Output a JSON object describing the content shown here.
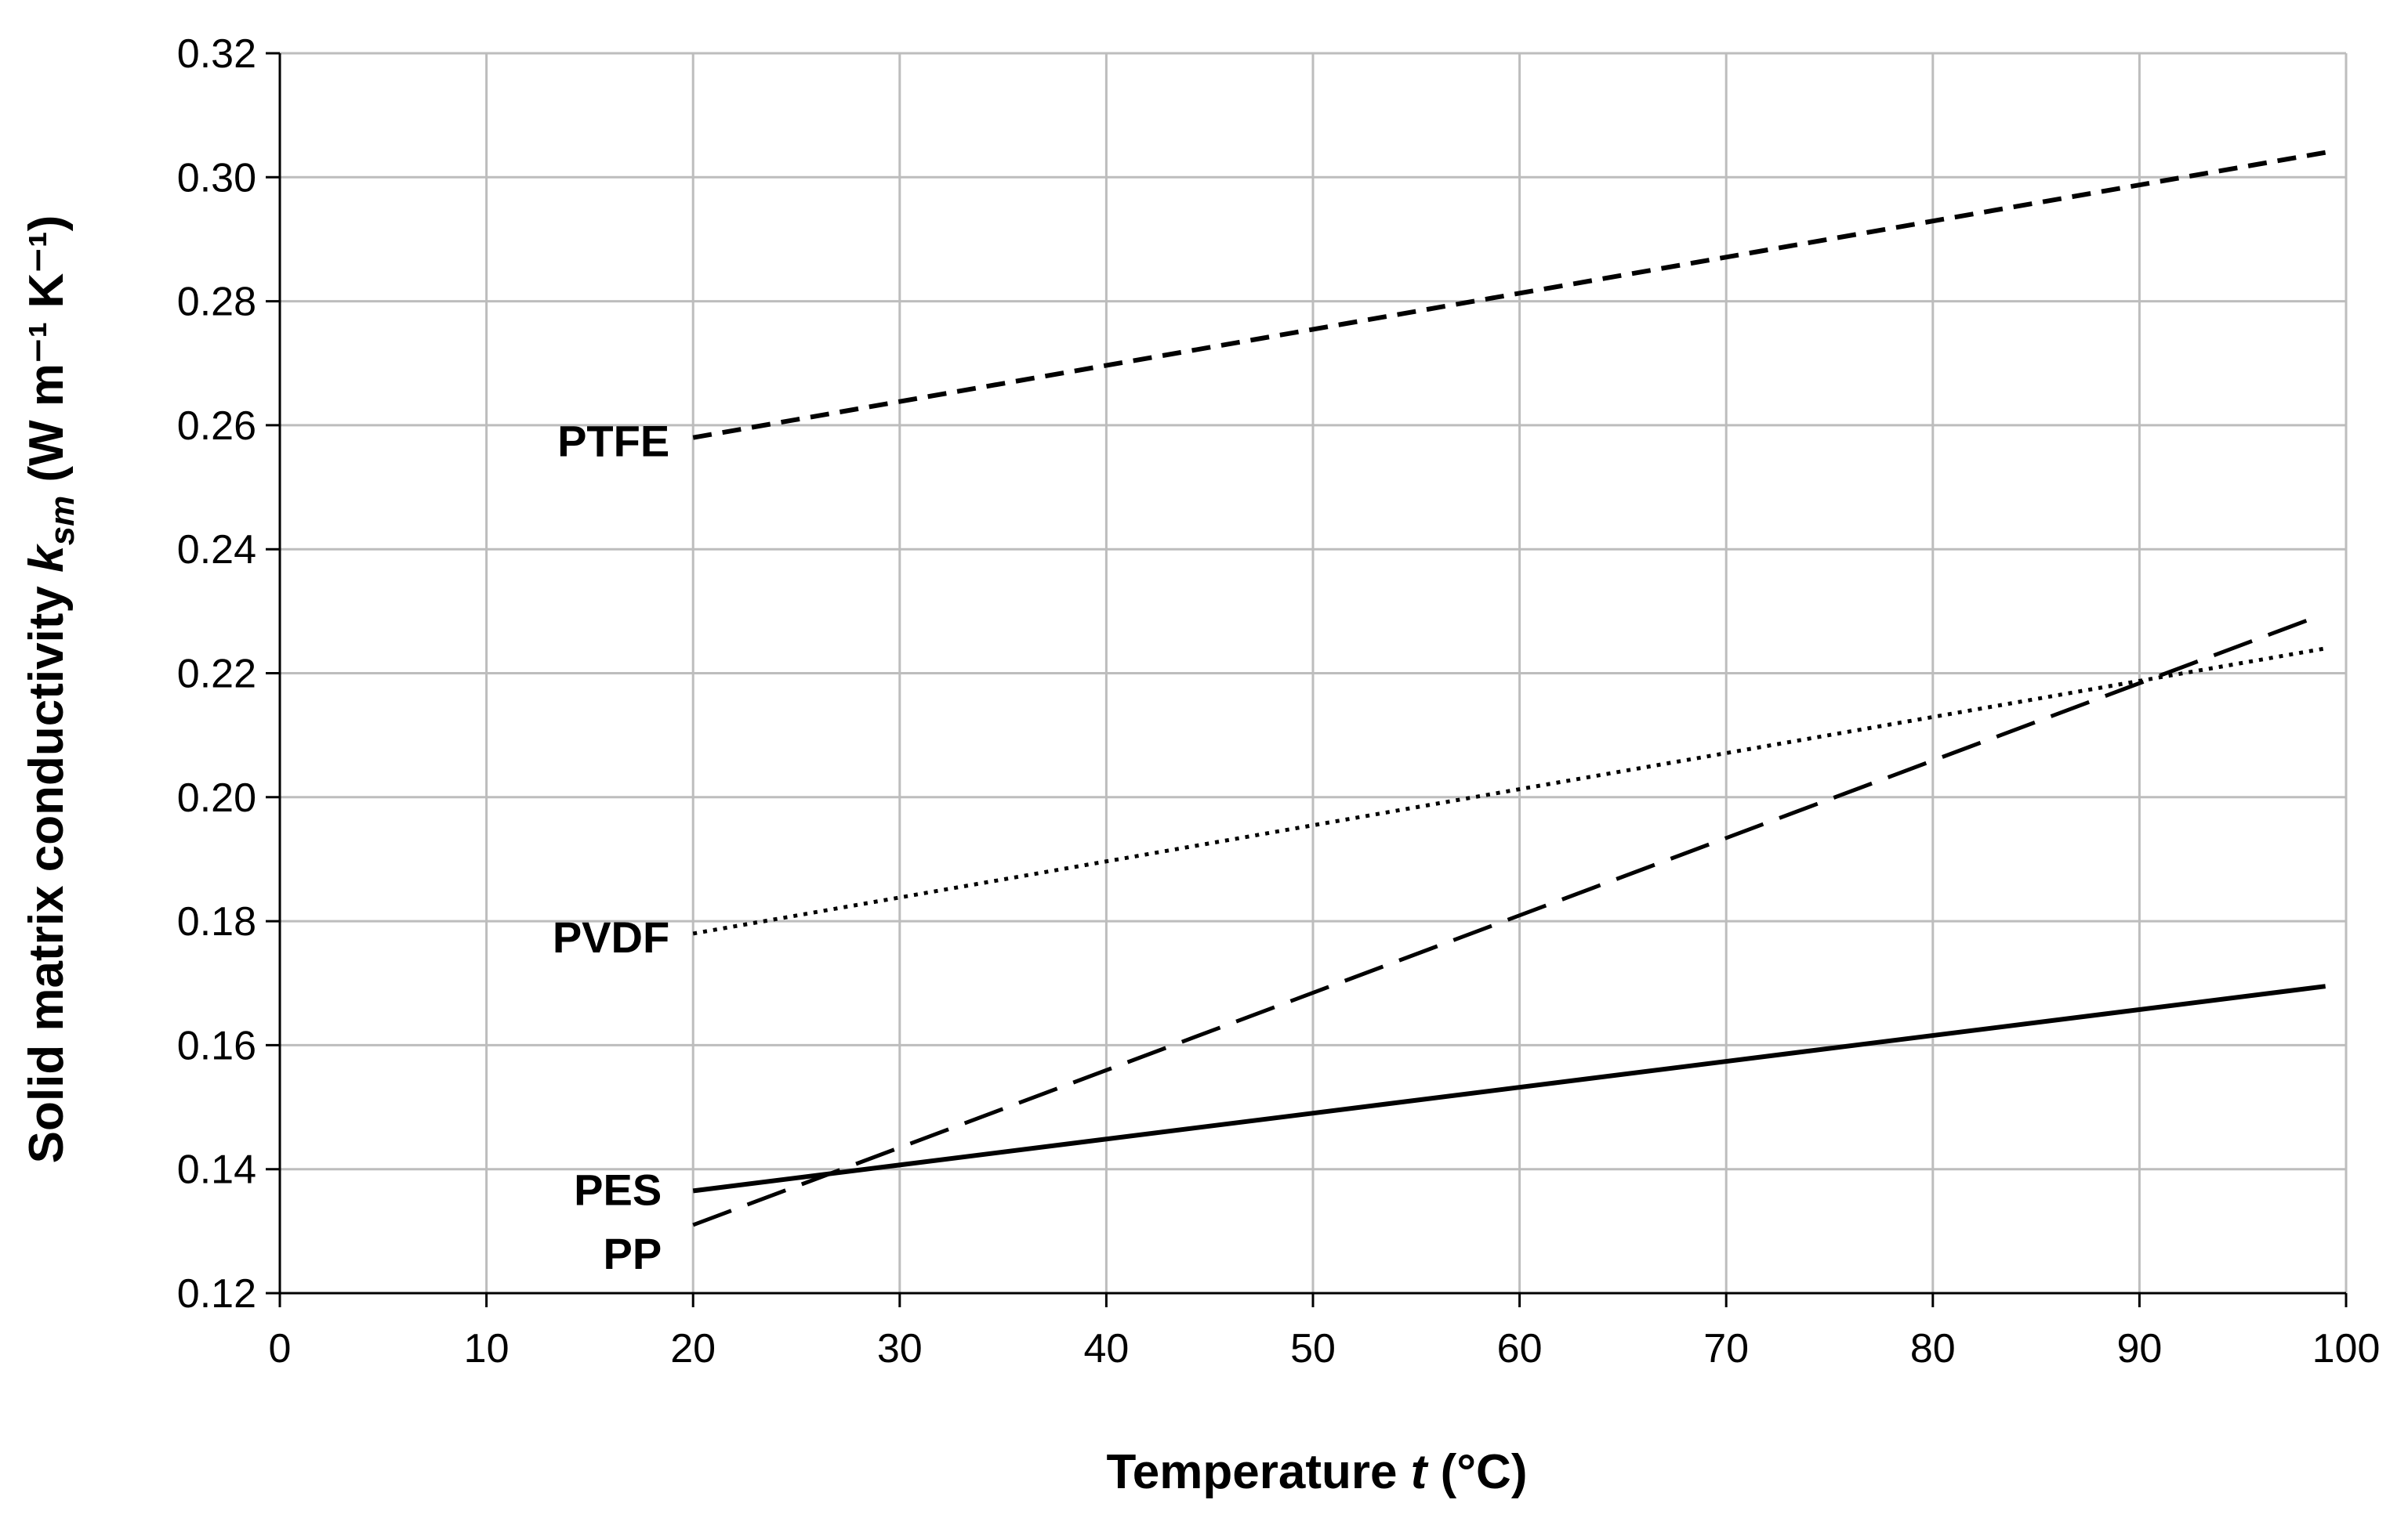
{
  "chart_data": {
    "type": "line",
    "title": "",
    "xlabel": {
      "prefix": "Temperature ",
      "var": "t",
      "suffix": " (°C)"
    },
    "ylabel": {
      "prefix": "Solid matrix conductivity ",
      "var": "k",
      "sub": "sm",
      "suffix": " (W m⁻¹ K⁻¹)"
    },
    "xlim": [
      0,
      100
    ],
    "ylim": [
      0.12,
      0.32
    ],
    "xticks": [
      0,
      10,
      20,
      30,
      40,
      50,
      60,
      70,
      80,
      90,
      100
    ],
    "xtick_labels": [
      "0",
      "10",
      "20",
      "30",
      "40",
      "50",
      "60",
      "70",
      "80",
      "90",
      "100"
    ],
    "yticks": [
      0.12,
      0.14,
      0.16,
      0.18,
      0.2,
      0.22,
      0.24,
      0.26,
      0.28,
      0.3,
      0.32
    ],
    "ytick_labels": [
      "0.12",
      "0.14",
      "0.16",
      "0.18",
      "0.20",
      "0.22",
      "0.24",
      "0.26",
      "0.28",
      "0.30",
      "0.32"
    ],
    "grid": true,
    "series": [
      {
        "name": "PTFE",
        "style": "short-dash",
        "x": [
          20,
          99
        ],
        "y": [
          0.258,
          0.304
        ]
      },
      {
        "name": "PVDF",
        "style": "dotted",
        "x": [
          20,
          99
        ],
        "y": [
          0.178,
          0.224
        ]
      },
      {
        "name": "PES",
        "style": "solid",
        "x": [
          20,
          99
        ],
        "y": [
          0.1365,
          0.1695
        ]
      },
      {
        "name": "PP",
        "style": "long-dash",
        "x": [
          20,
          98.5
        ],
        "y": [
          0.131,
          0.229
        ]
      }
    ]
  }
}
